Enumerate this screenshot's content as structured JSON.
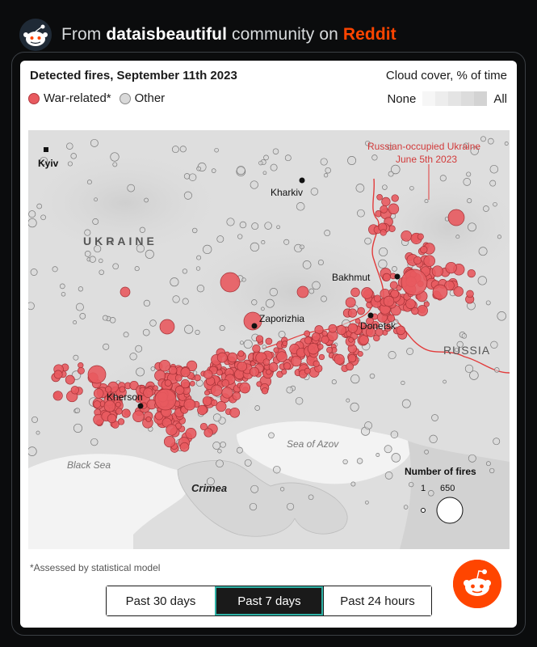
{
  "header": {
    "prefix": "From",
    "community": "dataisbeautiful",
    "middle": "community on",
    "platform": "Reddit"
  },
  "chart": {
    "title": "Detected fires, September 11th 2023",
    "legend": {
      "war": "War-related*",
      "other": "Other"
    },
    "cloud_cover": {
      "title": "Cloud cover, % of time",
      "low": "None",
      "high": "All"
    },
    "size_legend": {
      "title": "Number of fires",
      "min": "1",
      "max": "650"
    },
    "footnote": "*Assessed by statistical model",
    "colors": {
      "war": "#e85a5f",
      "other": "#d9d9d9",
      "occupied_line": "#e23b3b"
    }
  },
  "map_labels": {
    "country": "UKRAINE",
    "russia": "RUSSIA",
    "occupied_line1": "Russian-occupied Ukraine",
    "occupied_line2": "June 5th 2023",
    "black_sea": "Black Sea",
    "azov": "Sea of Azov",
    "crimea": "Crimea",
    "cities": {
      "kyiv": "Kyiv",
      "kharkiv": "Kharkiv",
      "bakhmut": "Bakhmut",
      "zaporizhia": "Zaporizhia",
      "donetsk": "Donetsk",
      "kherson": "Kherson"
    }
  },
  "tabs": [
    {
      "label": "Past 30 days",
      "active": false
    },
    {
      "label": "Past 7 days",
      "active": true
    },
    {
      "label": "Past 24 hours",
      "active": false
    }
  ]
}
